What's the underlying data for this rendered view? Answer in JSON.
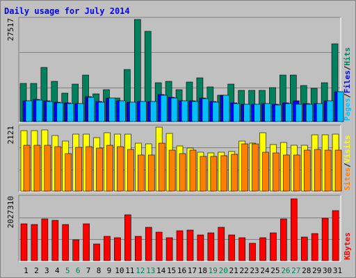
{
  "chart_data": {
    "type": "bar",
    "title": "Daily usage for July 2014",
    "categories": [
      "1",
      "2",
      "3",
      "4",
      "5",
      "6",
      "7",
      "8",
      "9",
      "10",
      "11",
      "12",
      "13",
      "14",
      "15",
      "16",
      "17",
      "18",
      "19",
      "20",
      "21",
      "22",
      "23",
      "24",
      "25",
      "26",
      "27",
      "28",
      "29",
      "30",
      "31"
    ],
    "weekend_days": [
      "5",
      "6",
      "12",
      "13",
      "19",
      "20",
      "26",
      "27"
    ],
    "panels": [
      {
        "id": "hits-panel",
        "max_label": "27517",
        "ymax": 27517,
        "series": [
          {
            "name": "Hits",
            "color": "#00805c",
            "values": [
              10300,
              10300,
              14600,
              10800,
              7700,
              10200,
              12500,
              7500,
              8700,
              6300,
              14100,
              27500,
              24400,
              10400,
              10800,
              8700,
              10600,
              11800,
              9400,
              7100,
              10200,
              8400,
              8500,
              8400,
              9100,
              12600,
              12600,
              9700,
              8900,
              10400,
              21000
            ]
          },
          {
            "name": "Files",
            "color": "#0000ff",
            "values": [
              5700,
              5900,
              5600,
              5300,
              5100,
              4900,
              6800,
              5400,
              6400,
              5700,
              5300,
              5400,
              5500,
              7300,
              6600,
              5700,
              5600,
              6300,
              5400,
              7200,
              5000,
              4700,
              4700,
              4900,
              4600,
              5100,
              5700,
              4800,
              4800,
              5700,
              8100
            ]
          },
          {
            "name": "Pages",
            "color": "#00c0ff",
            "values": [
              5600,
              5800,
              5500,
              5100,
              4900,
              4800,
              6600,
              5300,
              6300,
              5600,
              5200,
              5400,
              5500,
              7200,
              6400,
              5600,
              5400,
              6200,
              5300,
              7100,
              4900,
              4600,
              4700,
              4800,
              4500,
              4800,
              4700,
              4700,
              4800,
              5600,
              8000
            ]
          }
        ]
      },
      {
        "id": "visits-panel",
        "max_label": "2121",
        "ymax": 2121,
        "series": [
          {
            "name": "Visits",
            "color": "#ffff00",
            "values": [
              2000,
              2010,
              2030,
              1850,
              1660,
              1890,
              1890,
              1780,
              1930,
              1880,
              1880,
              1600,
              1560,
              2120,
              1920,
              1500,
              1440,
              1300,
              1260,
              1300,
              1310,
              1650,
              1590,
              1930,
              1550,
              1620,
              1520,
              1530,
              1860,
              1860,
              1890
            ]
          },
          {
            "name": "Sites",
            "color": "#ff8000",
            "values": [
              1530,
              1530,
              1520,
              1480,
              1240,
              1450,
              1480,
              1420,
              1530,
              1480,
              1380,
              1190,
              1190,
              1600,
              1350,
              1250,
              1350,
              1160,
              1160,
              1170,
              1220,
              1560,
              1560,
              1300,
              1260,
              1210,
              1190,
              1370,
              1380,
              1360,
              1350
            ]
          }
        ]
      },
      {
        "id": "kbytes-panel",
        "max_label": "2027310",
        "ymax": 2027310,
        "series": [
          {
            "name": "KBytes",
            "color": "#ff0000",
            "values": [
              1180000,
              1150000,
              1330000,
              1300000,
              1160000,
              670000,
              1190000,
              530000,
              780000,
              730000,
              1480000,
              780000,
              1060000,
              910000,
              730000,
              960000,
              980000,
              830000,
              880000,
              1080000,
              830000,
              730000,
              560000,
              730000,
              900000,
              1330000,
              1990000,
              760000,
              860000,
              1370000,
              1600000
            ]
          }
        ]
      }
    ],
    "legend_rows": [
      [
        {
          "text": "Pages",
          "color": "#00c0ff"
        },
        {
          "text": "/",
          "color": "#000000"
        },
        {
          "text": "Files",
          "color": "#0000ff"
        },
        {
          "text": "/",
          "color": "#000000"
        },
        {
          "text": "Hits",
          "color": "#00805c"
        }
      ],
      [
        {
          "text": "Sites",
          "color": "#ff8000"
        },
        {
          "text": "/",
          "color": "#000000"
        },
        {
          "text": "Visits",
          "color": "#ffff00"
        }
      ],
      [
        {
          "text": "KBytes",
          "color": "#ff0000"
        }
      ]
    ],
    "colors": {
      "title": "#0000ff",
      "weekday_label": "#000000",
      "weekend_label": "#00805c",
      "background": "#c0c0c0",
      "gridline": "#808080"
    }
  }
}
